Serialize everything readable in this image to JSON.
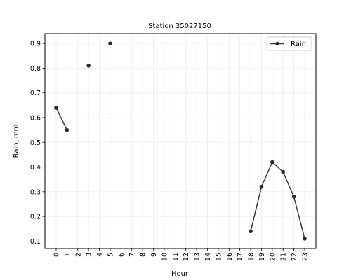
{
  "chart_data": {
    "type": "line",
    "title": "Station 35027150",
    "xlabel": "Hour",
    "ylabel": "Rain, mm",
    "categories": [
      "0",
      "1",
      "2",
      "3",
      "4",
      "5",
      "6",
      "7",
      "8",
      "9",
      "10",
      "11",
      "12",
      "13",
      "14",
      "15",
      "16",
      "17",
      "18",
      "19",
      "20",
      "21",
      "22",
      "23"
    ],
    "yticks": [
      0.1,
      0.2,
      0.3,
      0.4,
      0.5,
      0.6,
      0.7,
      0.8,
      0.9
    ],
    "ylim": [
      0.07,
      0.94
    ],
    "grid": true,
    "legend_position": "top-right",
    "series": [
      {
        "name": "Rain",
        "color": "#3b3b3b",
        "values": [
          0.64,
          0.55,
          null,
          0.81,
          null,
          0.9,
          null,
          null,
          null,
          null,
          null,
          null,
          null,
          null,
          null,
          null,
          null,
          null,
          0.14,
          0.32,
          0.42,
          0.38,
          0.28,
          0.11
        ]
      }
    ]
  }
}
